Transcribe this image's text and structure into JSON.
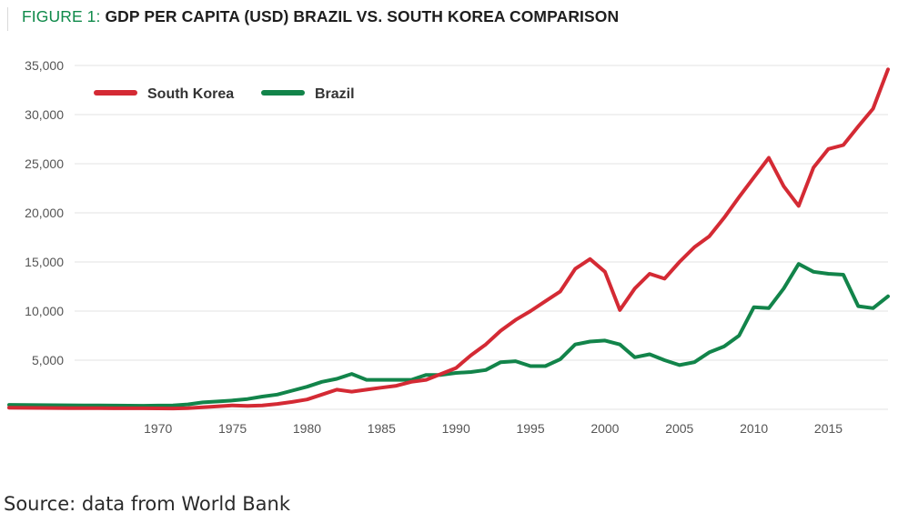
{
  "header": {
    "figure_label": "FIGURE 1:",
    "title_text": "GDP PER CAPITA (USD) BRAZIL VS. SOUTH KOREA COMPARISON"
  },
  "source": "Source: data from World Bank",
  "colors": {
    "south_korea": "#d42a34",
    "brazil": "#12844a",
    "grid": "#e3e3e3",
    "tick_text": "#555555"
  },
  "chart_data": {
    "type": "line",
    "title": "GDP PER CAPITA (USD) BRAZIL VS. SOUTH KOREA COMPARISON",
    "xlabel": "",
    "ylabel": "",
    "xlim": [
      1960,
      2019
    ],
    "ylim": [
      0,
      35000
    ],
    "grid": true,
    "legend_position": "top-left",
    "x_ticks": [
      1970,
      1975,
      1980,
      1985,
      1990,
      1995,
      2000,
      2005,
      2010,
      2015
    ],
    "x_tick_labels": [
      "1970",
      "1975",
      "1980",
      "1985",
      "1990",
      "1995",
      "2000",
      "2005",
      "2010",
      "2015"
    ],
    "y_ticks": [
      5000,
      10000,
      15000,
      20000,
      25000,
      30000,
      35000
    ],
    "y_tick_labels": [
      "5,000",
      "10,000",
      "15,000",
      "20,000",
      "25,000",
      "30,000",
      "35,000"
    ],
    "x": [
      1960,
      1961,
      1962,
      1963,
      1964,
      1965,
      1966,
      1967,
      1968,
      1969,
      1970,
      1971,
      1972,
      1973,
      1974,
      1975,
      1976,
      1977,
      1978,
      1979,
      1980,
      1981,
      1982,
      1983,
      1984,
      1985,
      1986,
      1987,
      1988,
      1989,
      1990,
      1991,
      1992,
      1993,
      1994,
      1995,
      1996,
      1997,
      1998,
      1999,
      2000,
      2001,
      2002,
      2003,
      2004,
      2005,
      2006,
      2007,
      2008,
      2009,
      2010,
      2011,
      2012,
      2013,
      2014,
      2015,
      2016,
      2017,
      2018,
      2019
    ],
    "series": [
      {
        "name": "South Korea",
        "values": [
          160,
          150,
          140,
          130,
          120,
          110,
          110,
          100,
          100,
          100,
          90,
          80,
          120,
          200,
          300,
          400,
          350,
          400,
          550,
          750,
          1000,
          1500,
          2000,
          1800,
          2000,
          2200,
          2400,
          2800,
          3000,
          3600,
          4200,
          5500,
          6600,
          8000,
          9100,
          10000,
          11000,
          12000,
          14300,
          15300,
          14000,
          10100,
          12300,
          13800,
          13300,
          15000,
          16500,
          17600,
          19500,
          21600,
          23600,
          25600,
          22700,
          20700,
          24600,
          26500,
          26900,
          28800,
          30600,
          34600
        ]
      },
      {
        "name": "Brazil",
        "values": [
          450,
          440,
          430,
          420,
          410,
          400,
          390,
          380,
          370,
          360,
          380,
          400,
          500,
          700,
          800,
          900,
          1050,
          1300,
          1500,
          1900,
          2300,
          2800,
          3100,
          3600,
          3000,
          3000,
          3000,
          3000,
          3500,
          3500,
          3700,
          3800,
          4000,
          4800,
          4900,
          4400,
          4400,
          5100,
          6600,
          6900,
          7000,
          6600,
          5300,
          5600,
          5000,
          4500,
          4800,
          5800,
          6400,
          7500,
          10400,
          10300,
          12300,
          14800,
          14000,
          13800,
          13700,
          10500,
          10300,
          11500
        ]
      }
    ]
  }
}
